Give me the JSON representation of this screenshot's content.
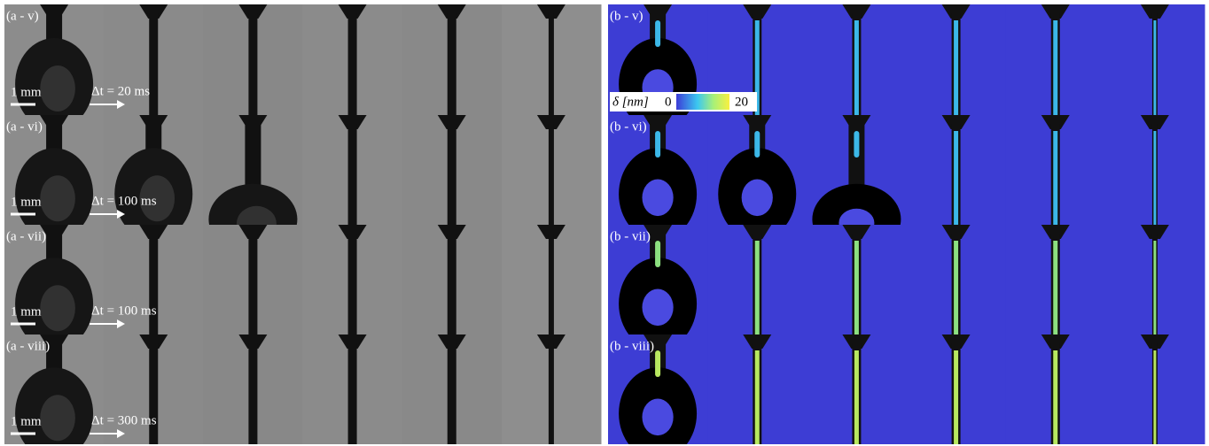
{
  "panels": [
    {
      "rows": [
        {
          "label": "(a - v)",
          "scale": "1 mm",
          "dt": "Δt = 20 ms"
        },
        {
          "label": "(a - vi)",
          "scale": "1 mm",
          "dt": "Δt = 100 ms"
        },
        {
          "label": "(a - vii)",
          "scale": "1 mm",
          "dt": "Δt = 100 ms"
        },
        {
          "label": "(a - viii)",
          "scale": "1 mm",
          "dt": "Δt = 300 ms"
        }
      ]
    },
    {
      "rows": [
        {
          "label": "(b - v)"
        },
        {
          "label": "(b - vi)"
        },
        {
          "label": "(b - vii)"
        },
        {
          "label": "(b - viii)"
        }
      ],
      "colorbar": {
        "label": "δ [nm]",
        "min": 0,
        "max": 20
      }
    }
  ]
}
